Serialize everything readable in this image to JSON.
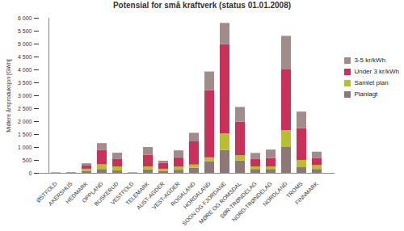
{
  "chart_data": {
    "type": "bar",
    "stacked": true,
    "title": "Potensial for små kraftverk (status 01.01.2008)",
    "y_label": "Midlere årsproduksjon [GWh]",
    "categories": [
      "ØSTFOLD",
      "AKERSHUS",
      "HEDMARK",
      "OPPLAND",
      "BUSKERUD",
      "VESTFOLD",
      "TELEMARK",
      "AUST-AGDER",
      "VEST-AGDER",
      "ROGALAND",
      "HORDALAND",
      "SOGN OG FJORDANE",
      "MØRE OG ROMSDAL",
      "SØR-TRØNDELAG",
      "NORD-TRØNDELAG",
      "NORDLAND",
      "TROMS",
      "FINNMARK"
    ],
    "series": [
      {
        "name": "Planlagt",
        "color": "#8e7875",
        "values": [
          5,
          5,
          80,
          150,
          100,
          5,
          130,
          80,
          120,
          200,
          450,
          880,
          480,
          150,
          150,
          1000,
          220,
          150
        ]
      },
      {
        "name": "Samlet plan",
        "color": "#b7bf30",
        "values": [
          0,
          0,
          80,
          180,
          150,
          0,
          120,
          80,
          120,
          120,
          150,
          650,
          200,
          100,
          100,
          650,
          280,
          150
        ]
      },
      {
        "name": "Under 3 kr/kWh",
        "color": "#c8325a",
        "values": [
          10,
          15,
          120,
          560,
          300,
          10,
          450,
          220,
          350,
          900,
          2600,
          3450,
          1300,
          300,
          320,
          2350,
          1230,
          280
        ]
      },
      {
        "name": "3-5 kr/kWh",
        "color": "#a08c8a",
        "values": [
          5,
          10,
          90,
          260,
          230,
          5,
          300,
          90,
          280,
          330,
          720,
          820,
          570,
          220,
          330,
          1300,
          640,
          240
        ]
      }
    ],
    "ylim": [
      0,
      6000
    ],
    "yticks": [
      0,
      500,
      {
        "value": 1000,
        "label": "1 000"
      },
      {
        "value": 1500,
        "label": "1 500"
      },
      {
        "value": 2000,
        "label": "2 000"
      },
      {
        "value": 2500,
        "label": "2 500"
      },
      {
        "value": 3000,
        "label": "3 000"
      },
      {
        "value": 3500,
        "label": "3 500"
      },
      {
        "value": 4000,
        "label": "4 000"
      },
      {
        "value": 4500,
        "label": "4 500"
      },
      {
        "value": 5000,
        "label": "5 000"
      },
      {
        "value": 5500,
        "label": "5 500"
      },
      {
        "value": 6000,
        "label": "6 000"
      }
    ],
    "grid": false,
    "legend": "right"
  }
}
